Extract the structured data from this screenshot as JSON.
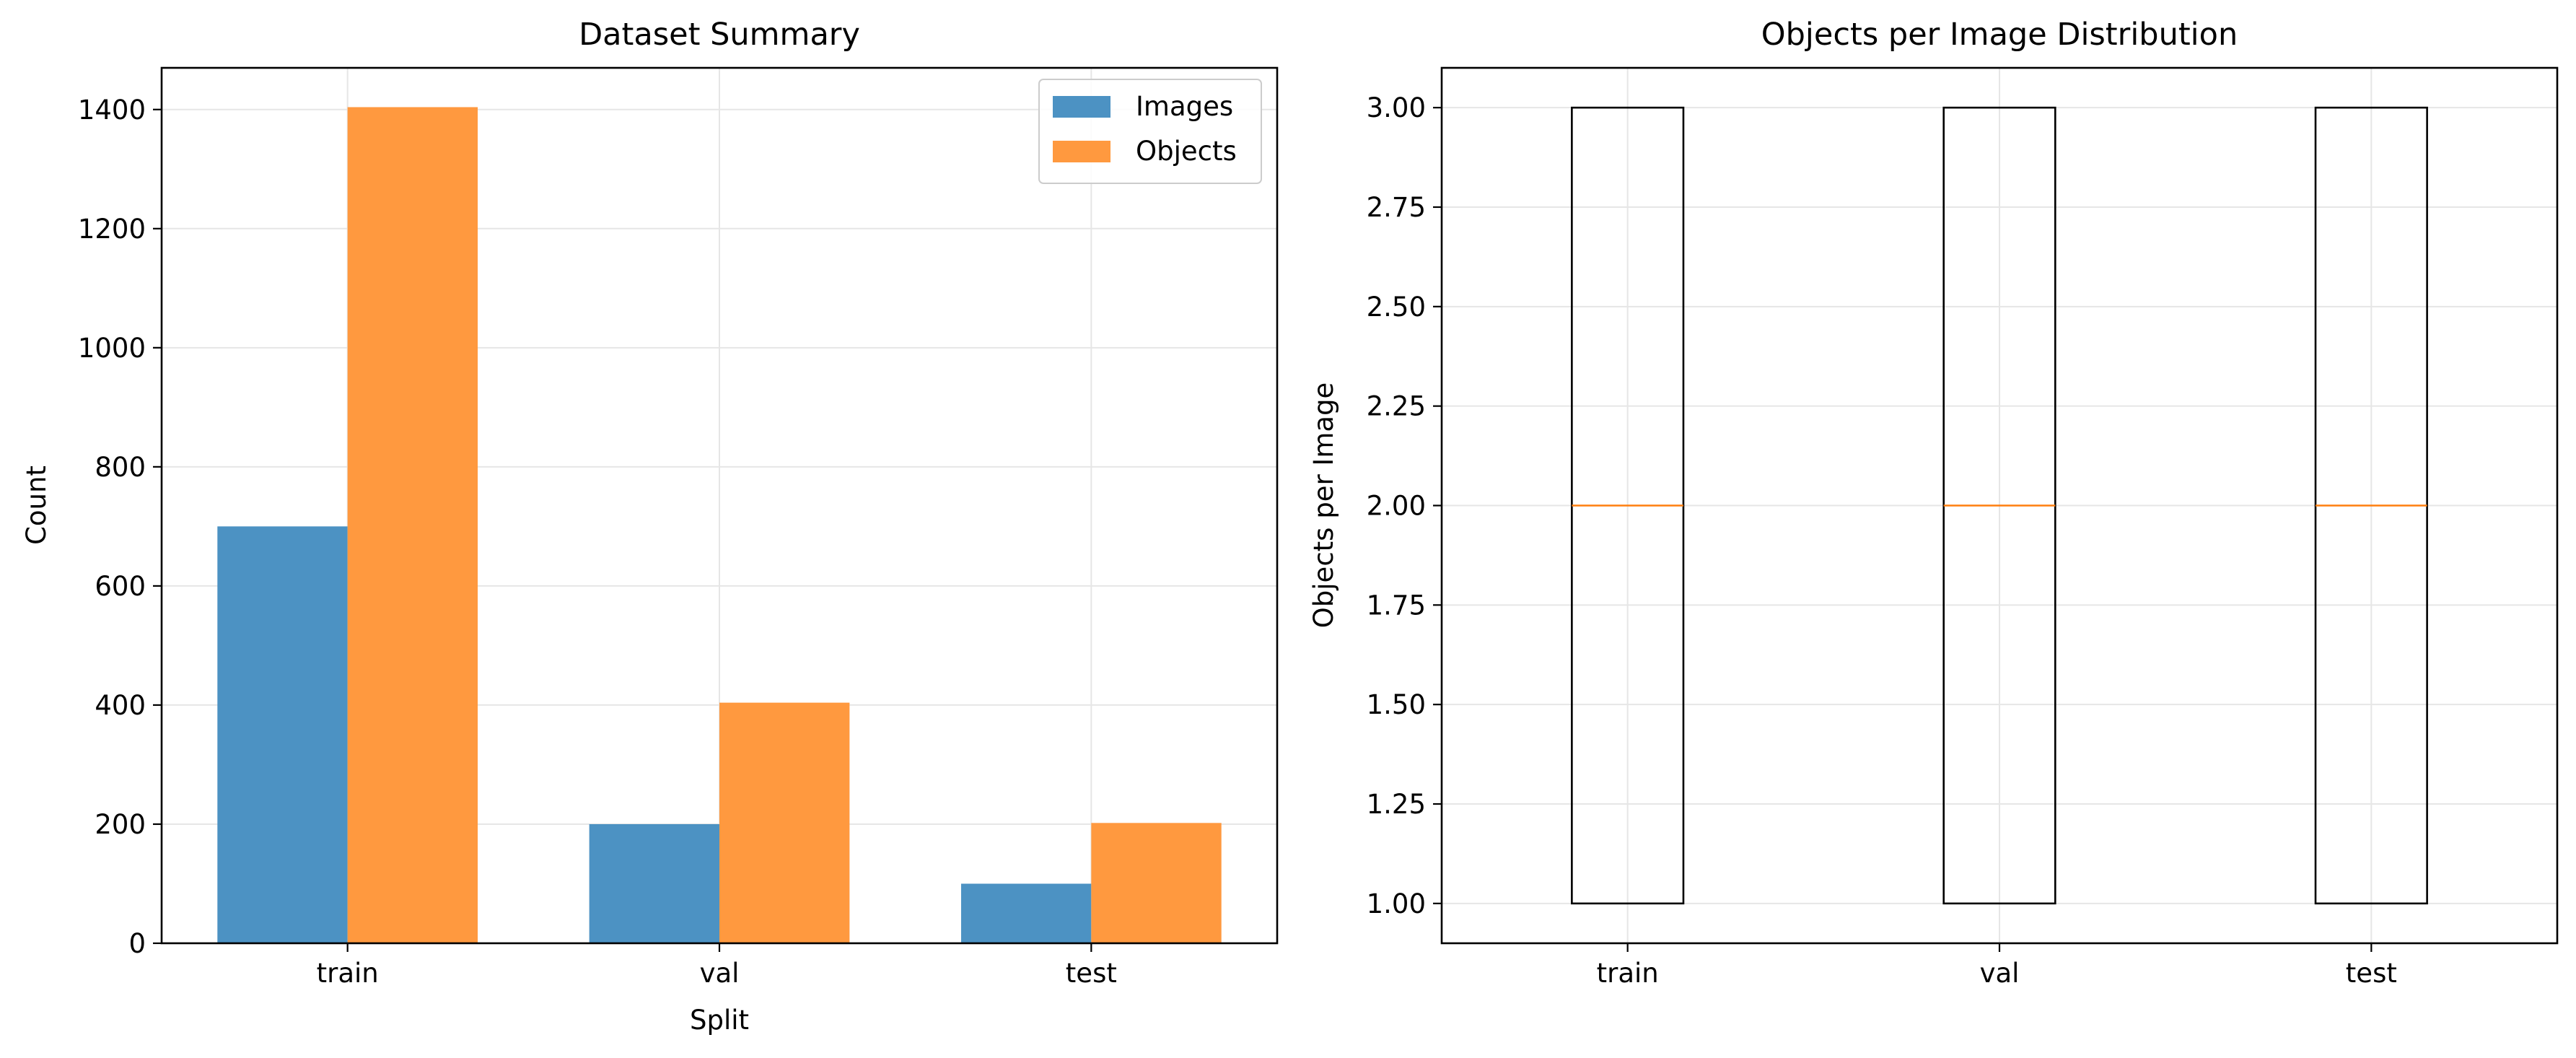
{
  "chart_data": [
    {
      "type": "bar",
      "title": "Dataset Summary",
      "xlabel": "Split",
      "ylabel": "Count",
      "categories": [
        "train",
        "val",
        "test"
      ],
      "series": [
        {
          "name": "Images",
          "values": [
            700,
            200,
            100
          ],
          "color": "#4c92c3"
        },
        {
          "name": "Objects",
          "values": [
            1404,
            404,
            202
          ],
          "color": "#ff993f"
        }
      ],
      "ylim": [
        0,
        1470
      ],
      "yticks": [
        0,
        200,
        400,
        600,
        800,
        1000,
        1200,
        1400
      ],
      "grid": true,
      "legend_position": "top-right"
    },
    {
      "type": "box",
      "title": "Objects per Image Distribution",
      "xlabel": "",
      "ylabel": "Objects per Image",
      "categories": [
        "train",
        "val",
        "test"
      ],
      "boxes": [
        {
          "label": "train",
          "min": 1.0,
          "q1": 1.0,
          "median": 2.0,
          "q3": 3.0,
          "max": 3.0
        },
        {
          "label": "val",
          "min": 1.0,
          "q1": 1.0,
          "median": 2.0,
          "q3": 3.0,
          "max": 3.0
        },
        {
          "label": "test",
          "min": 1.0,
          "q1": 1.0,
          "median": 2.0,
          "q3": 3.0,
          "max": 3.0
        }
      ],
      "ylim": [
        0.9,
        3.1
      ],
      "yticks": [
        "1.00",
        "1.25",
        "1.50",
        "1.75",
        "2.00",
        "2.25",
        "2.50",
        "2.75",
        "3.00"
      ],
      "median_color": "#ff7f0e",
      "grid": true
    }
  ]
}
